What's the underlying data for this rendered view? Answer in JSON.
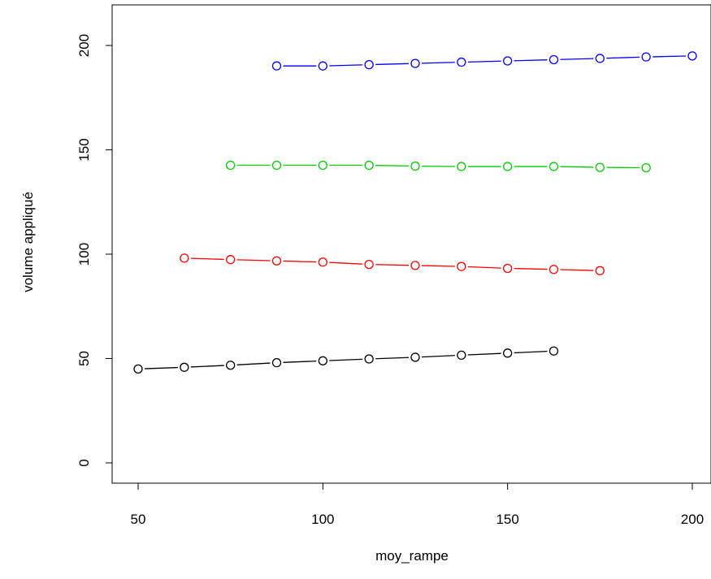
{
  "chart_data": {
    "type": "line",
    "title": "",
    "xlabel": "moy_rampe",
    "ylabel": "volume appliqué",
    "xlim": [
      45,
      205
    ],
    "ylim": [
      -10,
      220
    ],
    "xticks": [
      50,
      100,
      150,
      200
    ],
    "yticks": [
      0,
      50,
      100,
      150,
      200
    ],
    "grid": false,
    "marker": "open-circle",
    "line_style": "dashed",
    "series": [
      {
        "color": "#000000",
        "x": [
          50,
          62.5,
          75,
          87.5,
          100,
          112.5,
          125,
          137.5,
          150,
          162.5
        ],
        "y": [
          45.0,
          45.8,
          46.8,
          48.0,
          48.9,
          49.8,
          50.6,
          51.6,
          52.6,
          53.6
        ]
      },
      {
        "color": "#ff0000",
        "x": [
          62.5,
          75,
          87.5,
          100,
          112.5,
          125,
          137.5,
          150,
          162.5,
          175
        ],
        "y": [
          98.1,
          97.4,
          96.8,
          96.2,
          95.1,
          94.6,
          94.1,
          93.2,
          92.7,
          92.1
        ]
      },
      {
        "color": "#00cd00",
        "x": [
          75,
          87.5,
          100,
          112.5,
          125,
          137.5,
          150,
          162.5,
          175,
          187.5
        ],
        "y": [
          142.6,
          142.6,
          142.6,
          142.6,
          142.2,
          142.0,
          142.0,
          142.0,
          141.6,
          141.4
        ]
      },
      {
        "color": "#0000ff",
        "x": [
          87.5,
          100,
          112.5,
          125,
          137.5,
          150,
          162.5,
          175,
          187.5,
          200
        ],
        "y": [
          190.2,
          190.2,
          190.8,
          191.4,
          192.0,
          192.6,
          193.2,
          193.8,
          194.5,
          195.0
        ]
      }
    ]
  }
}
